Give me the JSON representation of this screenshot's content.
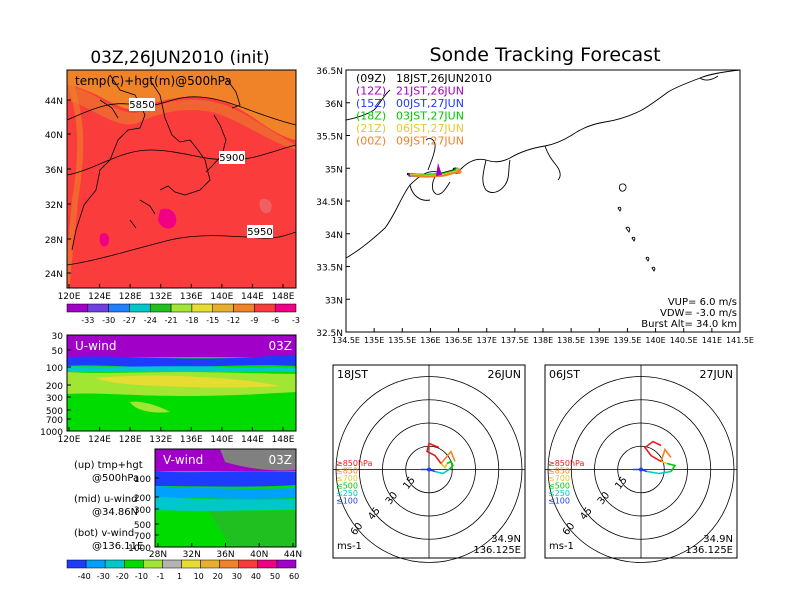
{
  "titles": {
    "left_title": "03Z,26JUN2010 (init)",
    "right_title": "Sonde Tracking Forecast"
  },
  "map500": {
    "label": "temp(C)+hgt(m)@500hPa",
    "contours": [
      {
        "label": "5850"
      },
      {
        "label": "5900"
      },
      {
        "label": "5950"
      }
    ],
    "lat_ticks": [
      "44N",
      "40N",
      "36N",
      "32N",
      "28N",
      "24N"
    ],
    "lon_ticks": [
      "120E",
      "124E",
      "128E",
      "132E",
      "136E",
      "140E",
      "144E",
      "148E"
    ],
    "colorbar_labels": [
      "-33",
      "-30",
      "-27",
      "-24",
      "-21",
      "-18",
      "-15",
      "-12",
      "-9",
      "-6",
      "-3"
    ],
    "colorbar_colors": [
      "#a000c8",
      "#7040e0",
      "#2080ff",
      "#00c8c8",
      "#20c020",
      "#a0e632",
      "#e6dc32",
      "#e6af2d",
      "#f08228",
      "#fa3c3c",
      "#f00082"
    ]
  },
  "uwind": {
    "title": "U-wind",
    "time": "03Z",
    "y_ticks": [
      "30",
      "50",
      "100",
      "200",
      "300",
      "500",
      "700",
      "1000"
    ],
    "x_ticks": [
      "120E",
      "124E",
      "128E",
      "132E",
      "136E",
      "140E",
      "144E",
      "148E"
    ]
  },
  "vwind": {
    "title": "V-wind",
    "time": "03Z",
    "y_ticks": [
      "100",
      "200",
      "300",
      "500",
      "700",
      "1000"
    ],
    "x_ticks": [
      "28N",
      "32N",
      "36N",
      "40N",
      "44N"
    ]
  },
  "legend_text": [
    {
      "a": "(up) tmp+hgt",
      "b": "@500hPa"
    },
    {
      "a": "(mid) u-wind",
      "b": "@34.86N"
    },
    {
      "a": "(bot) v-wind",
      "b": "@136.11E"
    }
  ],
  "wind_colorbar": {
    "labels": [
      "-40",
      "-30",
      "-20",
      "-10",
      "-1",
      "1",
      "10",
      "20",
      "30",
      "40",
      "50",
      "60"
    ],
    "colors": [
      "#1e3cff",
      "#00a0ff",
      "#00c8c8",
      "#00dc00",
      "#a0e632",
      "#b4b4b4",
      "#e6dc32",
      "#e6af2d",
      "#f08228",
      "#fa3c3c",
      "#f00082",
      "#a000c8"
    ]
  },
  "track_map": {
    "lat_ticks": [
      "36.5N",
      "36N",
      "35.5N",
      "35N",
      "34.5N",
      "34N",
      "33.5N",
      "33N",
      "32.5N"
    ],
    "lon_ticks": [
      "134.5E",
      "135E",
      "135.5E",
      "136E",
      "136.5E",
      "137E",
      "137.5E",
      "138E",
      "138.5E",
      "139E",
      "139.5E",
      "140E",
      "140.5E",
      "141E",
      "141.5E"
    ],
    "runs": [
      {
        "code": "(09Z)",
        "time": "18JST,26JUN2010",
        "color": "#000000"
      },
      {
        "code": "(12Z)",
        "time": "21JST,26JUN",
        "color": "#a000c8"
      },
      {
        "code": "(15Z)",
        "time": "00JST,27JUN",
        "color": "#1e3cff"
      },
      {
        "code": "(18Z)",
        "time": "03JST,27JUN",
        "color": "#00c800"
      },
      {
        "code": "(21Z)",
        "time": "06JST,27JUN",
        "color": "#e6c832"
      },
      {
        "code": "(00Z)",
        "time": "09JST,27JUN",
        "color": "#f08228"
      }
    ],
    "params": [
      "VUP= 6.0 m/s",
      "VDW= -3.0 m/s",
      "Burst Alt= 34.0 km"
    ]
  },
  "hodographs": [
    {
      "time": "18JST",
      "date": "26JUN",
      "lat": "34.9N",
      "lon": "136.125E",
      "unit": "ms-1"
    },
    {
      "time": "06JST",
      "date": "27JUN",
      "lat": "34.9N",
      "lon": "136.125E",
      "unit": "ms-1"
    }
  ],
  "hodo_rings": [
    "15",
    "30",
    "45",
    "60"
  ],
  "hodo_levels": [
    {
      "label": "≥850hPa",
      "color": "#e61e1e"
    },
    {
      "label": "≤850",
      "color": "#f08228"
    },
    {
      "label": "≤700",
      "color": "#e6c832"
    },
    {
      "label": "≤500",
      "color": "#00c800"
    },
    {
      "label": "≤250",
      "color": "#00c8c8"
    },
    {
      "label": "≤100",
      "color": "#1e3cff"
    }
  ]
}
